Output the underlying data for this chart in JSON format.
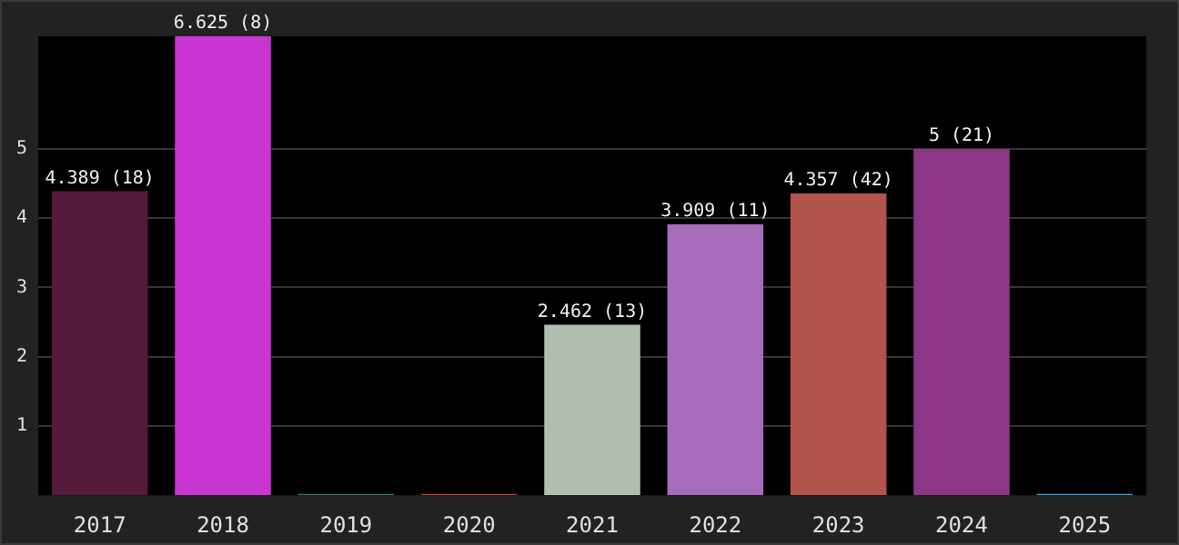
{
  "chart_data": {
    "type": "bar",
    "categories": [
      "2017",
      "2018",
      "2019",
      "2020",
      "2021",
      "2022",
      "2023",
      "2024",
      "2025"
    ],
    "values": [
      4.389,
      6.625,
      0.02,
      0.02,
      2.462,
      3.909,
      4.357,
      5,
      0.02
    ],
    "colors": [
      "#561a3a",
      "#c935d2",
      "#2e7d5a",
      "#b0401f",
      "#b2bfb0",
      "#a66bbb",
      "#b0544c",
      "#8c3685",
      "#3aa0e0"
    ],
    "value_labels": [
      "4.389 (18)",
      "6.625 (8)",
      null,
      null,
      "2.462 (13)",
      "3.909 (11)",
      "4.357 (42)",
      "5 (21)",
      null
    ],
    "ylim": [
      0,
      6.625
    ],
    "yticks": [
      1,
      2,
      3,
      4,
      5
    ],
    "grid": "y"
  }
}
